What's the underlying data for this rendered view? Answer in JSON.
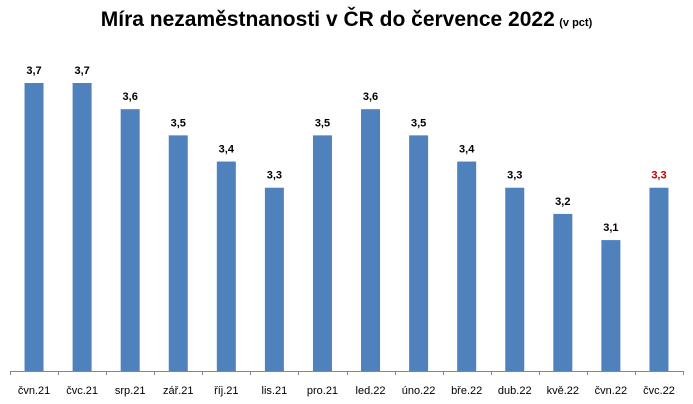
{
  "chart_data": {
    "type": "bar",
    "title": "Míra nezaměstnanosti v ČR do července 2022",
    "subtitle": "(v pct)",
    "xlabel": "",
    "ylabel": "",
    "categories": [
      "čvn.21",
      "čvc.21",
      "srp.21",
      "zář.21",
      "říj.21",
      "lis.21",
      "pro.21",
      "led.22",
      "úno.22",
      "bře.22",
      "dub.22",
      "kvě.22",
      "čvn.22",
      "čvc.22"
    ],
    "values": [
      3.7,
      3.7,
      3.6,
      3.5,
      3.4,
      3.3,
      3.5,
      3.6,
      3.5,
      3.4,
      3.3,
      3.2,
      3.1,
      3.3
    ],
    "data_labels": [
      "3,7",
      "3,7",
      "3,6",
      "3,5",
      "3,4",
      "3,3",
      "3,5",
      "3,6",
      "3,5",
      "3,4",
      "3,3",
      "3,2",
      "3,1",
      "3,3"
    ],
    "highlight_index": 13,
    "ylim": [
      2.6,
      3.7
    ],
    "grid": false,
    "legend": "none",
    "colors": {
      "bar": "#4f81bd",
      "label": "#000000",
      "highlight_label": "#c00000",
      "axis": "#868686"
    }
  }
}
